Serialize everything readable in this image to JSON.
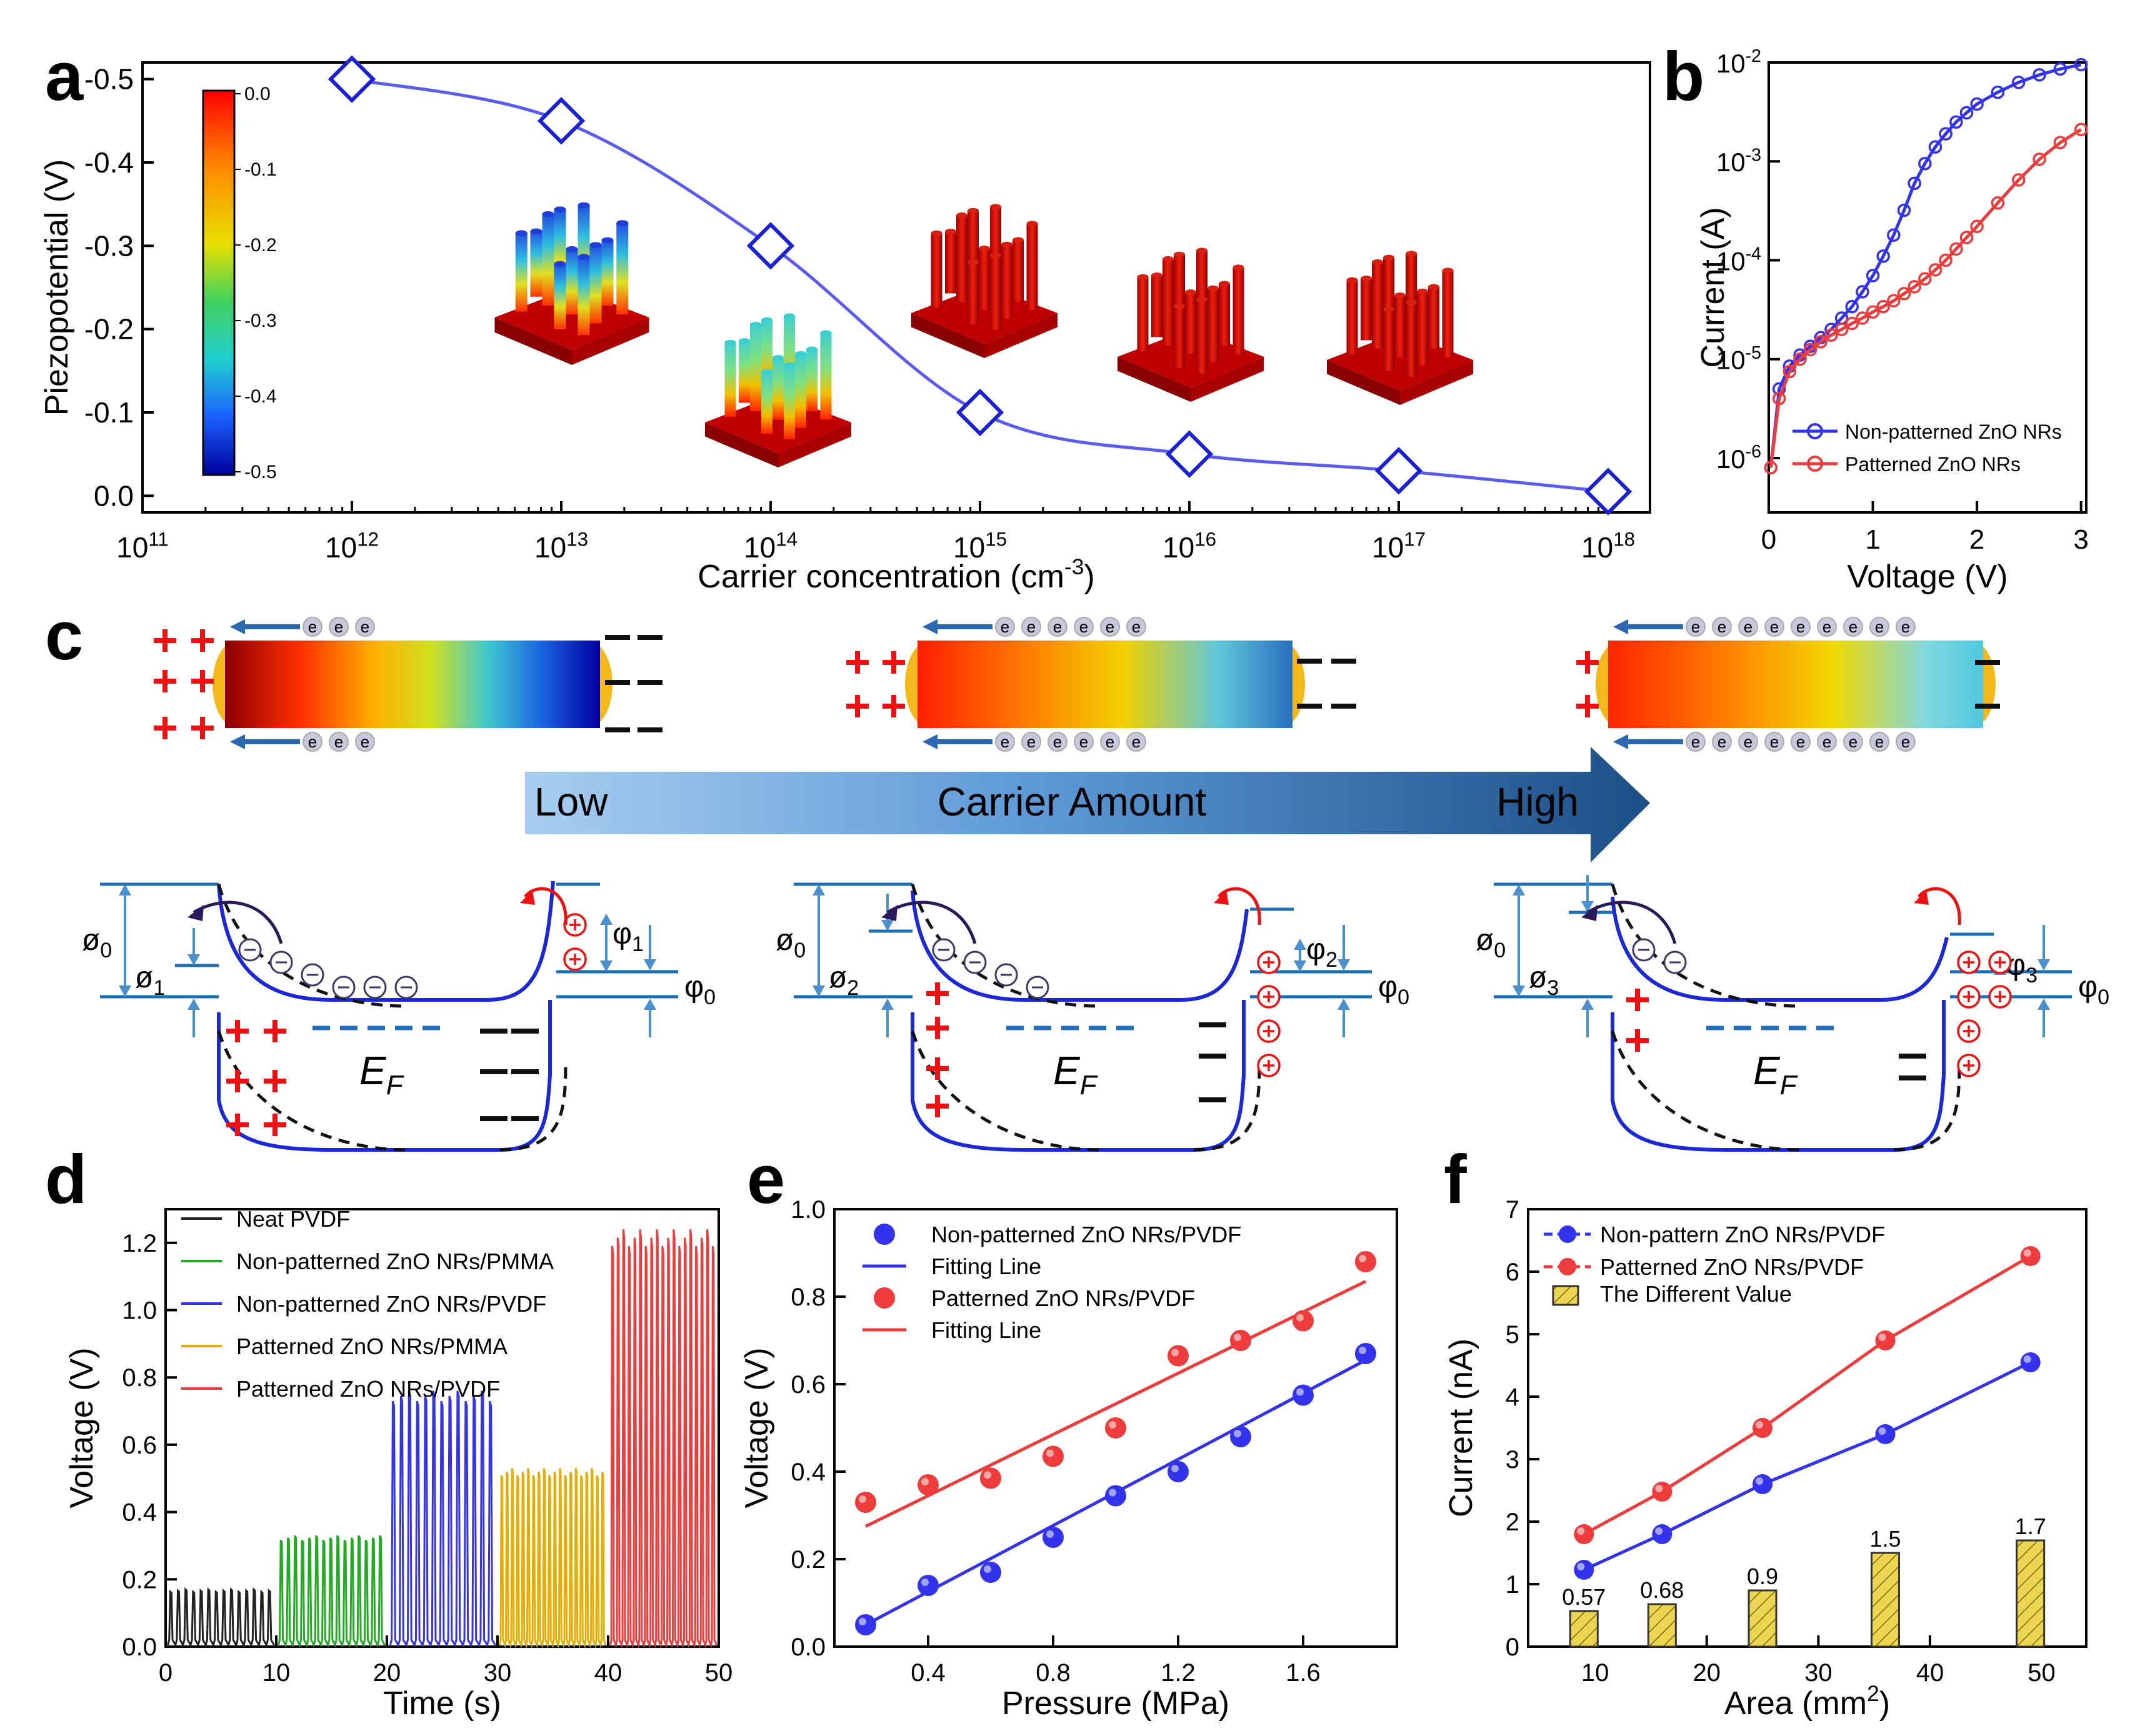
{
  "panel_letters": [
    "a",
    "b",
    "c",
    "d",
    "e",
    "f"
  ],
  "colors": {
    "blue": "#3333ee",
    "red": "#ee3b3b",
    "green": "#22aa22",
    "gold": "#e6ac00",
    "black": "#222222",
    "hatch": "#e8d048",
    "band_blue": "#1a28d8",
    "level_blue": "#1f6fb5",
    "label_blue": "#4a8fd0"
  },
  "chart_data": [
    {
      "id": "a",
      "type": "line",
      "xscale": "log",
      "xlabel": "Carrier concentration (cm-3)",
      "ylabel": "Piezopotential (V)",
      "x_tick_exponents": [
        11,
        12,
        13,
        14,
        15,
        16,
        17,
        18
      ],
      "y_ticks": [
        "-0.5",
        "-0.4",
        "-0.3",
        "-0.2",
        "-0.1",
        "0.0"
      ],
      "ylim": [
        0.02,
        -0.52
      ],
      "series": [
        {
          "x": [
            1000000000000.0,
            10000000000000.0,
            100000000000000.0,
            1000000000000000.0,
            1e+16,
            1e+17,
            1e+18
          ],
          "y": [
            -0.5,
            -0.45,
            -0.3,
            -0.1,
            -0.05,
            -0.03,
            -0.005
          ]
        }
      ],
      "colorbar": {
        "ticks": [
          "0.0",
          "-0.1",
          "-0.2",
          "-0.3",
          "-0.4",
          "-0.5"
        ]
      }
    },
    {
      "id": "b",
      "type": "line",
      "yscale": "log",
      "xlabel": "Voltage (V)",
      "ylabel": "Current (A)",
      "x_ticks": [
        "0",
        "1",
        "2",
        "3"
      ],
      "y_tick_exponents": [
        -6,
        -5,
        -4,
        -3,
        -2
      ],
      "xlim": [
        0,
        3
      ],
      "series": [
        {
          "name": "Non-patterned ZnO NRs",
          "x": [
            0.02,
            0.1,
            0.2,
            0.3,
            0.4,
            0.5,
            0.6,
            0.7,
            0.8,
            0.9,
            1.0,
            1.1,
            1.2,
            1.3,
            1.4,
            1.5,
            1.6,
            1.7,
            1.8,
            1.9,
            2.0,
            2.2,
            2.4,
            2.6,
            2.8,
            3.0
          ],
          "y": [
            8e-07,
            5e-06,
            8.5e-06,
            1.1e-05,
            1.35e-05,
            1.65e-05,
            2e-05,
            2.6e-05,
            3.4e-05,
            4.8e-05,
            7e-05,
            0.00011,
            0.00018,
            0.00032,
            0.0006,
            0.00095,
            0.0014,
            0.0019,
            0.0025,
            0.0031,
            0.0038,
            0.005,
            0.0063,
            0.0075,
            0.0086,
            0.0095
          ]
        },
        {
          "name": "Patterned ZnO NRs",
          "x": [
            0.02,
            0.1,
            0.2,
            0.3,
            0.4,
            0.5,
            0.6,
            0.7,
            0.8,
            0.9,
            1.0,
            1.1,
            1.2,
            1.3,
            1.4,
            1.5,
            1.6,
            1.7,
            1.8,
            1.9,
            2.0,
            2.2,
            2.4,
            2.6,
            2.8,
            3.0
          ],
          "y": [
            8e-07,
            4e-06,
            7.5e-06,
            1e-05,
            1.25e-05,
            1.5e-05,
            1.75e-05,
            2e-05,
            2.3e-05,
            2.6e-05,
            3e-05,
            3.4e-05,
            3.9e-05,
            4.6e-05,
            5.4e-05,
            6.5e-05,
            8e-05,
            0.0001,
            0.00013,
            0.00017,
            0.00022,
            0.00038,
            0.00065,
            0.00105,
            0.00155,
            0.0021
          ]
        }
      ]
    },
    {
      "id": "d",
      "type": "line",
      "xlabel": "Time (s)",
      "ylabel": "Voltage (V)",
      "x_ticks": [
        "0",
        "10",
        "20",
        "30",
        "40",
        "50"
      ],
      "y_ticks": [
        "0.0",
        "0.2",
        "0.4",
        "0.6",
        "0.8",
        "1.0",
        "1.2"
      ],
      "xlim": [
        0,
        50
      ],
      "ylim": [
        0,
        1.3
      ],
      "series": [
        {
          "name": "Neat PVDF",
          "t_range": [
            0.2,
            9.8
          ],
          "peak": 0.17,
          "count": 14
        },
        {
          "name": "Non-patterned ZnO NRs/PMMA",
          "t_range": [
            10.2,
            19.8
          ],
          "peak": 0.33,
          "count": 15
        },
        {
          "name": "Non-patterned ZnO NRs/PVDF",
          "t_range": [
            20.3,
            29.8
          ],
          "peak": 0.76,
          "count": 13
        },
        {
          "name": "Patterned ZnO NRs/PMMA",
          "t_range": [
            30.2,
            39.8
          ],
          "peak": 0.53,
          "count": 20
        },
        {
          "name": "Patterned ZnO NRs/PVDF",
          "t_range": [
            40.2,
            49.8
          ],
          "peak": 1.24,
          "count": 19
        }
      ]
    },
    {
      "id": "e",
      "type": "scatter",
      "xlabel": "Pressure (MPa)",
      "ylabel": "Voltage (V)",
      "x_ticks": [
        "0.4",
        "0.8",
        "1.2",
        "1.6"
      ],
      "y_ticks": [
        "0.0",
        "0.2",
        "0.4",
        "0.6",
        "0.8",
        "1.0"
      ],
      "xlim": [
        0.1,
        1.9
      ],
      "ylim": [
        0,
        1.0
      ],
      "series": [
        {
          "name": "Non-patterned ZnO NRs/PVDF",
          "x": [
            0.2,
            0.4,
            0.6,
            0.8,
            1.0,
            1.2,
            1.4,
            1.6,
            1.8
          ],
          "y": [
            0.05,
            0.14,
            0.17,
            0.25,
            0.345,
            0.4,
            0.48,
            0.575,
            0.67
          ],
          "fit": [
            [
              0.2,
              0.05
            ],
            [
              1.8,
              0.655
            ]
          ],
          "fit_name": "Fitting Line"
        },
        {
          "name": "Patterned ZnO NRs/PVDF",
          "x": [
            0.2,
            0.4,
            0.6,
            0.8,
            1.0,
            1.2,
            1.4,
            1.6,
            1.8
          ],
          "y": [
            0.33,
            0.37,
            0.385,
            0.435,
            0.5,
            0.665,
            0.7,
            0.745,
            0.88
          ],
          "fit": [
            [
              0.2,
              0.275
            ],
            [
              1.8,
              0.835
            ]
          ],
          "fit_name": "Fitting Line"
        }
      ]
    },
    {
      "id": "f",
      "type": "bar+line",
      "xlabel": "Area (mm2)",
      "ylabel": "Current (nA)",
      "x_ticks": [
        "10",
        "20",
        "30",
        "40",
        "50"
      ],
      "y_ticks": [
        "0",
        "1",
        "2",
        "3",
        "4",
        "5",
        "6",
        "7"
      ],
      "xlim": [
        4,
        54
      ],
      "ylim": [
        0,
        7
      ],
      "series": [
        {
          "name": "Non-pattern ZnO NRs/PVDF",
          "x": [
            9,
            16,
            25,
            36,
            49
          ],
          "y": [
            1.23,
            1.8,
            2.6,
            3.4,
            4.55
          ]
        },
        {
          "name": "Patterned ZnO NRs/PVDF",
          "x": [
            9,
            16,
            25,
            36,
            49
          ],
          "y": [
            1.8,
            2.48,
            3.5,
            4.9,
            6.25
          ]
        },
        {
          "name": "The Different Value",
          "x": [
            9,
            16,
            25,
            36,
            49
          ],
          "y": [
            0.57,
            0.68,
            0.9,
            1.5,
            1.7
          ],
          "labels": [
            "0.57",
            "0.68",
            "0.9",
            "1.5",
            "1.7"
          ]
        }
      ]
    }
  ],
  "panel_c": {
    "arrow_low": "Low",
    "arrow_mid": "Carrier Amount",
    "arrow_high": "High",
    "electron": "e",
    "ef_label": "E",
    "ef_sub": "F",
    "labels_1": {
      "phi0": "ø0",
      "phiL": "ø1",
      "psiR": "φ1",
      "psi0": "φ0"
    },
    "labels_2": {
      "phi0": "ø0",
      "phiL": "ø2",
      "psiR": "φ2",
      "psi0": "φ0"
    },
    "labels_3": {
      "phi0": "ø0",
      "phiL": "ø3",
      "psiR": "φ3",
      "psi0": "φ0"
    }
  }
}
